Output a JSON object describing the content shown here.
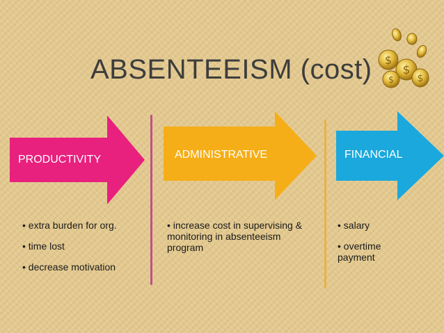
{
  "title": "ABSENTEEISM (cost)",
  "colors": {
    "productivity": "#e8207e",
    "administrative": "#f5ae18",
    "financial": "#1ba8dc",
    "divider_pink": "#c0508a",
    "divider_orange": "#e8b24a"
  },
  "categories": [
    {
      "label": "PRODUCTIVITY",
      "bullets": [
        "• extra burden for org.",
        "• time lost",
        "• decrease motivation"
      ]
    },
    {
      "label": "ADMINISTRATIVE",
      "bullets": [
        "• increase cost in supervising & monitoring in absenteeism program"
      ]
    },
    {
      "label": "FINANCIAL",
      "bullets": [
        "• salary",
        "• overtime payment"
      ]
    }
  ]
}
